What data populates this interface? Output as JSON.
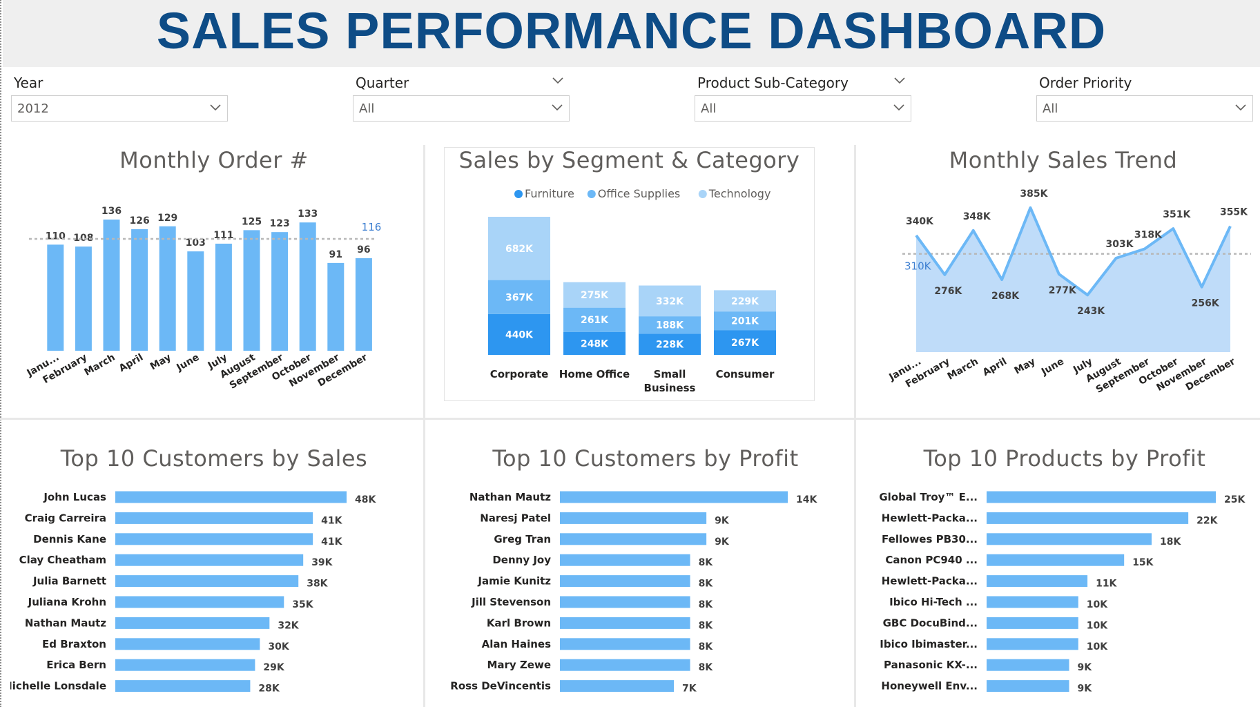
{
  "header": {
    "title": "SALES PERFORMANCE DASHBOARD"
  },
  "slicers": [
    {
      "label": "Year",
      "value": "2012",
      "header_chevron": false
    },
    {
      "label": "Quarter",
      "value": "All",
      "header_chevron": true
    },
    {
      "label": "Product Sub-Category",
      "value": "All",
      "header_chevron": true
    },
    {
      "label": "Order Priority",
      "value": "All",
      "header_chevron": false
    }
  ],
  "colors": {
    "bar": "#6cb8f6",
    "furniture": "#2d96f0",
    "office": "#6cb8f6",
    "technology": "#a9d4f8",
    "area": "#bfdcf9",
    "line": "#6cb8f6",
    "title_blue": "#0e4c86",
    "avg_label": "#3d7fd1"
  },
  "chart_data": [
    {
      "type": "bar",
      "title": "Monthly Order #",
      "categories": [
        "Janu...",
        "February",
        "March",
        "April",
        "May",
        "June",
        "July",
        "August",
        "September",
        "October",
        "November",
        "December"
      ],
      "values": [
        110,
        108,
        136,
        126,
        129,
        103,
        111,
        125,
        123,
        133,
        91,
        96
      ],
      "average": 116,
      "average_label": "116",
      "ylim": [
        0,
        150
      ]
    },
    {
      "type": "bar",
      "stacked": true,
      "title": "Sales by Segment & Category",
      "legend": [
        "Furniture",
        "Office Supplies",
        "Technology"
      ],
      "legend_position": "top",
      "categories": [
        "Corporate",
        "Home Office",
        "Small Business",
        "Consumer"
      ],
      "category_lines": [
        [
          "Corporate"
        ],
        [
          "Home Office"
        ],
        [
          "Small",
          "Business"
        ],
        [
          "Consumer"
        ]
      ],
      "series": [
        {
          "name": "Furniture",
          "values": [
            440,
            248,
            228,
            267
          ],
          "labels": [
            "440K",
            "248K",
            "228K",
            "267K"
          ]
        },
        {
          "name": "Office Supplies",
          "values": [
            367,
            261,
            188,
            201
          ],
          "labels": [
            "367K",
            "261K",
            "188K",
            "201K"
          ]
        },
        {
          "name": "Technology",
          "values": [
            682,
            275,
            332,
            229
          ],
          "labels": [
            "682K",
            "275K",
            "332K",
            "229K"
          ]
        }
      ]
    },
    {
      "type": "area",
      "title": "Monthly Sales Trend",
      "categories": [
        "Janu...",
        "February",
        "March",
        "April",
        "May",
        "June",
        "July",
        "August",
        "September",
        "October",
        "November",
        "December"
      ],
      "values": [
        340,
        276,
        348,
        268,
        385,
        277,
        243,
        303,
        318,
        351,
        256,
        355
      ],
      "labels": [
        "340K",
        "276K",
        "348K",
        "268K",
        "385K",
        "277K",
        "243K",
        "303K",
        "318K",
        "351K",
        "256K",
        "355K"
      ],
      "average": 310,
      "average_label": "310K",
      "ylim": [
        150,
        395
      ]
    },
    {
      "type": "bar",
      "orientation": "horizontal",
      "title": "Top 10 Customers by Sales",
      "categories": [
        "John Lucas",
        "Craig Carreira",
        "Dennis Kane",
        "Clay Cheatham",
        "Julia Barnett",
        "Juliana Krohn",
        "Nathan Mautz",
        "Ed Braxton",
        "Erica Bern",
        "Michelle Lonsdale"
      ],
      "values": [
        48,
        41,
        41,
        39,
        38,
        35,
        32,
        30,
        29,
        28
      ],
      "labels": [
        "48K",
        "41K",
        "41K",
        "39K",
        "38K",
        "35K",
        "32K",
        "30K",
        "29K",
        "28K"
      ]
    },
    {
      "type": "bar",
      "orientation": "horizontal",
      "title": "Top 10 Customers by Profit",
      "categories": [
        "Nathan Mautz",
        "Naresj Patel",
        "Greg Tran",
        "Denny Joy",
        "Jamie Kunitz",
        "Jill Stevenson",
        "Karl Brown",
        "Alan Haines",
        "Mary Zewe",
        "Ross DeVincentis"
      ],
      "values": [
        14,
        9,
        9,
        8,
        8,
        8,
        8,
        8,
        8,
        7
      ],
      "labels": [
        "14K",
        "9K",
        "9K",
        "8K",
        "8K",
        "8K",
        "8K",
        "8K",
        "8K",
        "7K"
      ]
    },
    {
      "type": "bar",
      "orientation": "horizontal",
      "title": "Top 10 Products by Profit",
      "categories": [
        "Global Troy™ E...",
        "Hewlett-Packa...",
        "Fellowes PB30...",
        "Canon PC940 ...",
        "Hewlett-Packa...",
        "Ibico Hi-Tech ...",
        "GBC DocuBind...",
        "Ibico Ibimaster...",
        "Panasonic KX-...",
        "Honeywell Env..."
      ],
      "values": [
        25,
        22,
        18,
        15,
        11,
        10,
        10,
        10,
        9,
        9
      ],
      "labels": [
        "25K",
        "22K",
        "18K",
        "15K",
        "11K",
        "10K",
        "10K",
        "10K",
        "9K",
        "9K"
      ]
    }
  ]
}
